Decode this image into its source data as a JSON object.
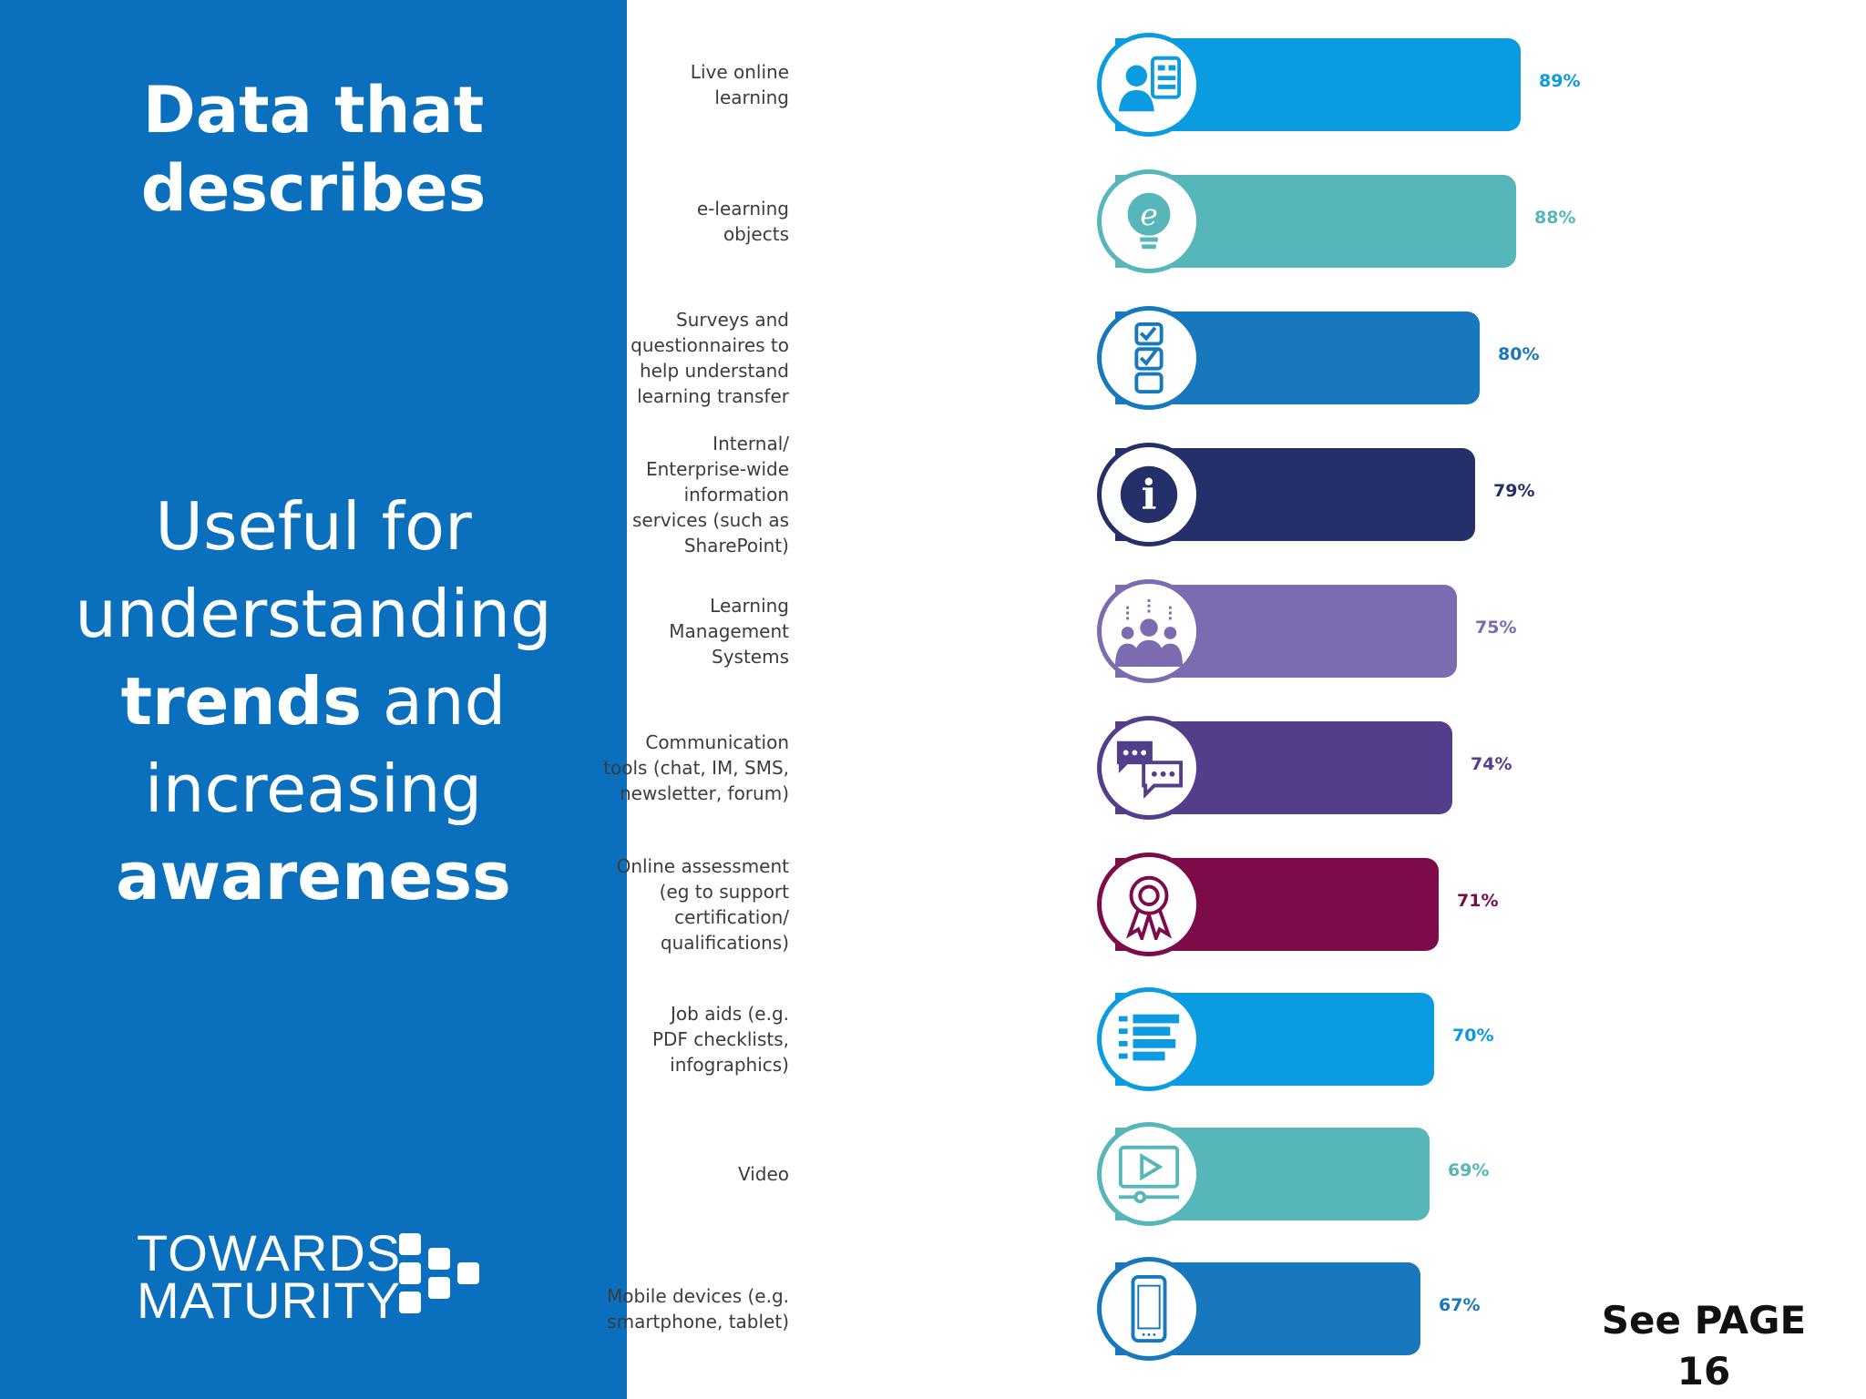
{
  "panel": {
    "heading_line1": "Data that",
    "heading_line2": "describes",
    "body_line1": "Useful for",
    "body_line2": "understanding",
    "body_line3_strong": "trends",
    "body_line3_rest": " and",
    "body_line4": "increasing",
    "body_line5_strong": "awareness",
    "brand_line1": "TOWARDS",
    "brand_line2": "MATURITY"
  },
  "chart_data": {
    "type": "bar",
    "orientation": "horizontal",
    "categories": [
      "Live online\nlearning",
      "e-learning\nobjects",
      "Surveys and\nquestionnaires to\nhelp understand\nlearning transfer",
      "Internal/\nEnterprise-wide\ninformation\nservices (such as\nSharePoint)",
      "Learning\nManagement\nSystems",
      "Communication\ntools (chat, IM, SMS,\nnewsletter, forum)",
      "Online assessment\n(eg to support\ncertification/\nqualifications)",
      "Job aids (e.g.\nPDF checklists,\ninfographics)",
      "Video",
      "Mobile devices (e.g.\nsmartphone, tablet)"
    ],
    "values": [
      89,
      88,
      80,
      79,
      75,
      74,
      71,
      70,
      69,
      67
    ],
    "value_labels": [
      "89%",
      "88%",
      "80%",
      "79%",
      "75%",
      "74%",
      "71%",
      "70%",
      "69%",
      "67%"
    ],
    "colors": [
      "#0a9be1",
      "#56b6b9",
      "#1878bd",
      "#25306b",
      "#7c6bb0",
      "#533e8c",
      "#7d0b4a",
      "#0a9be1",
      "#56b6b9",
      "#1878bd"
    ],
    "icons": [
      "live-online-learning-icon",
      "e-learning-bulb-icon",
      "checklist-icon",
      "info-icon",
      "people-group-icon",
      "chat-bubbles-icon",
      "award-rosette-icon",
      "job-aid-list-icon",
      "video-play-icon",
      "mobile-phone-icon"
    ],
    "xlim": [
      0,
      100
    ]
  },
  "footnote": {
    "line1": "See PAGE",
    "line2": "16"
  }
}
